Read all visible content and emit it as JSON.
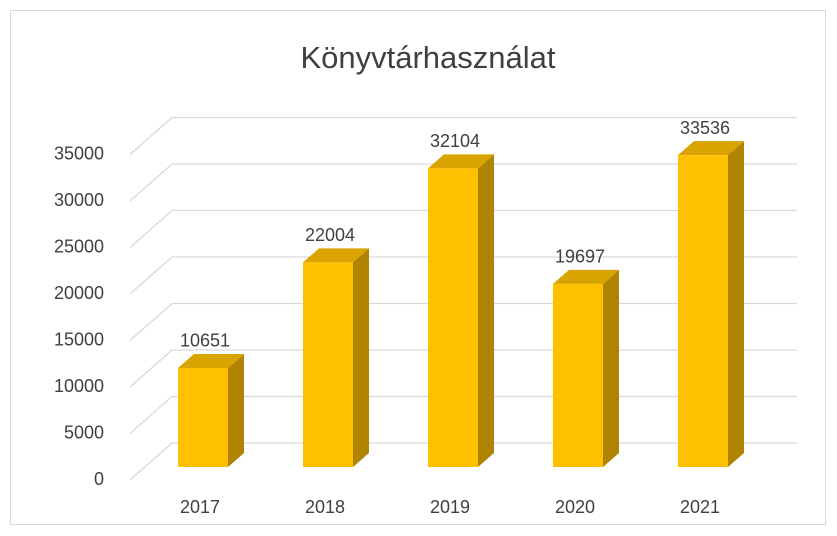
{
  "chart_data": {
    "type": "bar",
    "title": "Könyvtárhasználat",
    "categories": [
      "2017",
      "2018",
      "2019",
      "2020",
      "2021"
    ],
    "values": [
      10651,
      22004,
      32104,
      19697,
      33536
    ],
    "color": "#ffc000",
    "ylim": [
      0,
      35000
    ],
    "yticks": [
      0,
      5000,
      10000,
      15000,
      20000,
      25000,
      30000,
      35000
    ],
    "grid": true
  }
}
